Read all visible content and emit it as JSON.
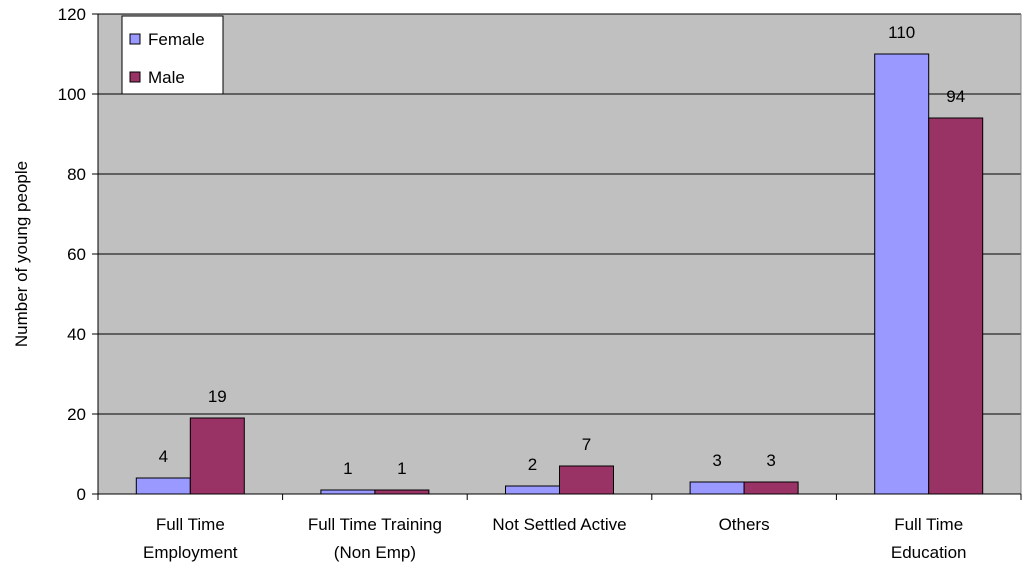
{
  "chart_data": {
    "type": "bar",
    "title": "",
    "xlabel": "",
    "ylabel": "Number of young people",
    "ylim": [
      0,
      120
    ],
    "yticks": [
      0,
      20,
      40,
      60,
      80,
      100,
      120
    ],
    "grid": true,
    "legend_position": "top-left",
    "categories": [
      "Full Time\nEmployment",
      "Full Time Training\n(Non Emp)",
      "Not Settled Active",
      "Others",
      "Full Time\nEducation"
    ],
    "series": [
      {
        "name": "Female",
        "color": "#9999ff",
        "values": [
          4,
          1,
          2,
          3,
          110
        ]
      },
      {
        "name": "Male",
        "color": "#993366",
        "values": [
          19,
          1,
          7,
          3,
          94
        ]
      }
    ],
    "plot_background": "#c0c0c0"
  }
}
